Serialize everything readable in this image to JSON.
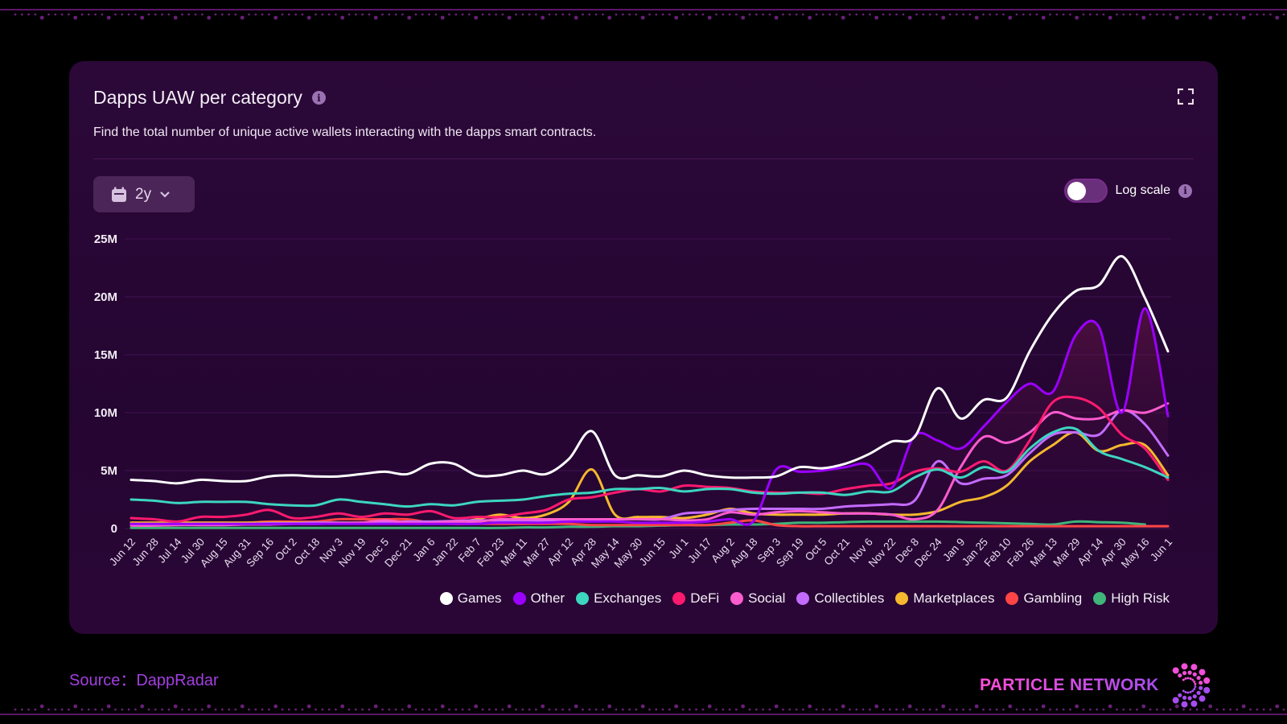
{
  "card": {
    "title": "Dapps UAW per category",
    "description": "Find the total number of unique active wallets interacting with the dapps smart contracts.",
    "range_label": "2y",
    "log_scale_label": "Log scale",
    "log_scale_on": false
  },
  "footer": {
    "source": "Source：DappRadar",
    "brand": "PARTICLE NETWORK"
  },
  "chart_data": {
    "type": "line",
    "title": "Dapps UAW per category",
    "xlabel": "",
    "ylabel": "",
    "ylim": [
      0,
      25000000
    ],
    "yticks": [
      0,
      5000000,
      10000000,
      15000000,
      20000000,
      25000000
    ],
    "ytick_labels": [
      "0",
      "5M",
      "10M",
      "15M",
      "20M",
      "25M"
    ],
    "grid": true,
    "legend_position": "bottom-right",
    "x": [
      "Jun 12",
      "Jun 28",
      "Jul 14",
      "Jul 30",
      "Aug 15",
      "Aug 31",
      "Sep 16",
      "Oct 2",
      "Oct 18",
      "Nov 3",
      "Nov 19",
      "Dec 5",
      "Dec 21",
      "Jan 6",
      "Jan 22",
      "Feb 7",
      "Feb 23",
      "Mar 11",
      "Mar 27",
      "Apr 12",
      "Apr 28",
      "May 14",
      "May 30",
      "Jun 15",
      "Jul 1",
      "Jul 17",
      "Aug 2",
      "Aug 18",
      "Sep 3",
      "Sep 19",
      "Oct 5",
      "Oct 21",
      "Nov 6",
      "Nov 22",
      "Dec 8",
      "Dec 24",
      "Jan 9",
      "Jan 25",
      "Feb 10",
      "Feb 26",
      "Mar 13",
      "Mar 29",
      "Apr 14",
      "Apr 30",
      "May 16",
      "Jun 1"
    ],
    "unit": "millions",
    "series": [
      {
        "name": "Games",
        "color": "#ffffff",
        "values": [
          4.2,
          4.1,
          3.9,
          4.2,
          4.1,
          4.1,
          4.5,
          4.6,
          4.5,
          4.5,
          4.7,
          4.9,
          4.7,
          5.6,
          5.6,
          4.6,
          4.6,
          5.0,
          4.7,
          6.0,
          8.4,
          4.6,
          4.6,
          4.5,
          5.0,
          4.6,
          4.4,
          4.4,
          4.5,
          5.3,
          5.2,
          5.6,
          6.4,
          7.5,
          7.9,
          12.1,
          9.5,
          11.1,
          11.3,
          15.3,
          18.5,
          20.5,
          21.0,
          23.5,
          19.9,
          15.3
        ]
      },
      {
        "name": "Other",
        "color": "#9b00ff",
        "values": [
          0.4,
          0.4,
          0.4,
          0.4,
          0.4,
          0.4,
          0.4,
          0.4,
          0.4,
          0.4,
          0.4,
          0.4,
          0.4,
          0.4,
          0.4,
          0.4,
          0.5,
          0.5,
          0.5,
          0.6,
          0.6,
          0.6,
          0.5,
          0.5,
          0.5,
          0.6,
          0.8,
          0.6,
          5.1,
          4.9,
          5.0,
          5.3,
          5.5,
          3.5,
          8.0,
          7.6,
          6.9,
          8.8,
          10.9,
          12.5,
          11.8,
          16.7,
          17.4,
          10.0,
          19.0,
          9.7
        ]
      },
      {
        "name": "Exchanges",
        "color": "#3dd6c0",
        "values": [
          2.5,
          2.4,
          2.2,
          2.3,
          2.3,
          2.3,
          2.1,
          2.0,
          2.0,
          2.5,
          2.3,
          2.1,
          1.9,
          2.1,
          2.0,
          2.3,
          2.4,
          2.5,
          2.8,
          3.0,
          3.1,
          3.4,
          3.4,
          3.5,
          3.2,
          3.4,
          3.4,
          3.1,
          3.0,
          3.1,
          3.1,
          2.9,
          3.2,
          3.2,
          4.4,
          5.1,
          4.4,
          5.3,
          4.9,
          6.9,
          8.3,
          8.6,
          6.7,
          6.0,
          5.3,
          4.4
        ]
      },
      {
        "name": "DeFi",
        "color": "#ff1a6e",
        "values": [
          0.9,
          0.8,
          0.6,
          1.0,
          1.0,
          1.2,
          1.6,
          0.9,
          1.0,
          1.3,
          1.0,
          1.3,
          1.2,
          1.5,
          0.9,
          1.0,
          1.0,
          1.3,
          1.6,
          2.5,
          2.7,
          3.1,
          3.4,
          3.2,
          3.7,
          3.6,
          3.5,
          3.2,
          3.1,
          3.1,
          3.0,
          3.4,
          3.7,
          3.9,
          4.9,
          5.2,
          4.9,
          5.8,
          5.0,
          7.6,
          10.9,
          11.3,
          10.4,
          8.1,
          6.9,
          4.2
        ]
      },
      {
        "name": "Social",
        "color": "#ff5ccf",
        "values": [
          0.25,
          0.25,
          0.3,
          0.3,
          0.3,
          0.35,
          0.35,
          0.4,
          0.4,
          0.45,
          0.5,
          0.7,
          0.5,
          0.5,
          0.6,
          0.6,
          0.8,
          0.8,
          0.8,
          0.8,
          0.8,
          0.8,
          0.8,
          0.8,
          0.7,
          0.8,
          1.4,
          1.2,
          1.4,
          1.5,
          1.4,
          1.3,
          1.3,
          1.2,
          0.8,
          1.6,
          5.3,
          7.9,
          7.4,
          8.3,
          10.0,
          9.5,
          9.5,
          10.2,
          10.0,
          10.8
        ]
      },
      {
        "name": "Collectibles",
        "color": "#c46bff",
        "values": [
          0.35,
          0.35,
          0.35,
          0.4,
          0.4,
          0.4,
          0.45,
          0.45,
          0.5,
          0.5,
          0.5,
          0.55,
          0.6,
          0.6,
          0.65,
          0.7,
          0.7,
          0.7,
          0.7,
          0.75,
          0.75,
          0.8,
          0.8,
          0.8,
          1.3,
          1.4,
          1.6,
          1.7,
          1.7,
          1.7,
          1.7,
          1.9,
          2.0,
          2.1,
          2.4,
          5.8,
          3.9,
          4.3,
          4.6,
          6.5,
          8.1,
          8.3,
          8.1,
          10.2,
          9.0,
          6.3
        ]
      },
      {
        "name": "Marketplaces",
        "color": "#f5b82e",
        "values": [
          0.5,
          0.5,
          0.5,
          0.5,
          0.5,
          0.5,
          0.5,
          0.5,
          0.5,
          0.5,
          0.5,
          0.5,
          0.5,
          0.5,
          0.5,
          0.8,
          1.2,
          0.9,
          1.2,
          2.3,
          5.1,
          1.2,
          1.0,
          1.0,
          0.9,
          1.2,
          1.7,
          1.3,
          1.2,
          1.2,
          1.2,
          1.3,
          1.3,
          1.2,
          1.2,
          1.5,
          2.3,
          2.7,
          3.7,
          5.8,
          7.2,
          8.3,
          6.7,
          7.2,
          7.2,
          4.6
        ]
      },
      {
        "name": "Gambling",
        "color": "#ff4545",
        "values": [
          0.5,
          0.5,
          0.5,
          0.5,
          0.5,
          0.5,
          0.6,
          0.6,
          0.6,
          0.8,
          0.8,
          0.8,
          0.8,
          0.5,
          0.4,
          0.4,
          0.4,
          0.4,
          0.4,
          0.4,
          0.3,
          0.3,
          0.3,
          0.3,
          0.3,
          0.3,
          0.5,
          0.7,
          0.3,
          0.2,
          0.2,
          0.2,
          0.2,
          0.2,
          0.2,
          0.2,
          0.2,
          0.2,
          0.2,
          0.2,
          0.2,
          0.2,
          0.2,
          0.2,
          0.2,
          0.2
        ]
      },
      {
        "name": "High Risk",
        "color": "#3fb57a",
        "values": [
          0.05,
          0.05,
          0.05,
          0.05,
          0.05,
          0.05,
          0.05,
          0.05,
          0.05,
          0.05,
          0.05,
          0.05,
          0.05,
          0.05,
          0.05,
          0.05,
          0.05,
          0.1,
          0.1,
          0.15,
          0.15,
          0.2,
          0.2,
          0.25,
          0.3,
          0.3,
          0.35,
          0.35,
          0.4,
          0.5,
          0.5,
          0.55,
          0.6,
          0.6,
          0.6,
          0.6,
          0.55,
          0.5,
          0.45,
          0.4,
          0.35,
          0.6,
          0.55,
          0.5,
          0.35,
          null
        ]
      }
    ]
  }
}
